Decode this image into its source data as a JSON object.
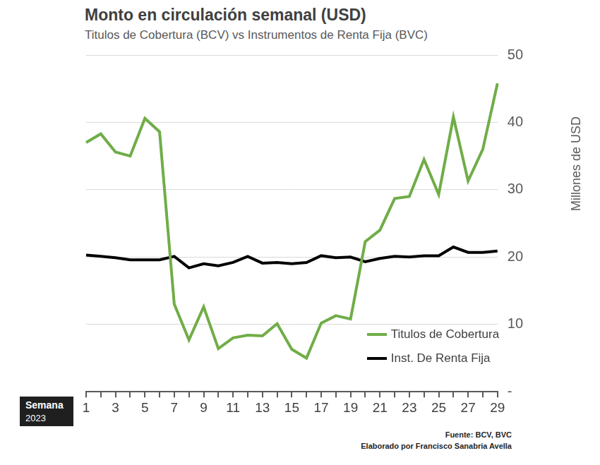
{
  "chart_data": {
    "type": "line",
    "title": "Monto en circulación semanal (USD)",
    "subtitle": "Titulos de Cobertura (BCV) vs Instrumentos de Renta Fija (BVC)",
    "ylabel": "Millones de USD",
    "xlabel": "Semana",
    "xlabel_sub": "2023",
    "source": "Fuente: BCV, BVC",
    "credit": "Elaborado por Francisco Sanabria Avella",
    "categories": [
      "1",
      null,
      "3",
      null,
      "5",
      null,
      "7",
      null,
      "9",
      null,
      "11",
      null,
      "13",
      null,
      "15",
      null,
      "17",
      null,
      "19",
      null,
      "21",
      null,
      "23",
      null,
      "25",
      null,
      "27",
      null,
      "29"
    ],
    "series": [
      {
        "name": "Titulos de Cobertura",
        "color": "#70ad47",
        "values": [
          37,
          38.3,
          35.6,
          35,
          40.6,
          38.6,
          13,
          7.7,
          12.6,
          6.4,
          8,
          8.4,
          8.3,
          10.1,
          6.3,
          5,
          10.2,
          11.3,
          10.8,
          22.3,
          24,
          28.7,
          29,
          34.5,
          29.3,
          40.8,
          31.3,
          36,
          45.8
        ]
      },
      {
        "name": "Inst. De Renta Fija",
        "color": "#000000",
        "values": [
          20.3,
          20.1,
          19.9,
          19.6,
          19.6,
          19.6,
          20.1,
          18.4,
          19,
          18.7,
          19.2,
          20.1,
          19.1,
          19.2,
          19,
          19.2,
          20.2,
          19.9,
          20,
          19.3,
          19.8,
          20.1,
          20,
          20.2,
          20.2,
          21.5,
          20.7,
          20.7,
          20.9
        ]
      }
    ],
    "ylim": [
      0,
      50
    ],
    "yticks": [
      {
        "value": 0,
        "label": "-"
      },
      10,
      20,
      30,
      40,
      50
    ],
    "grid": true,
    "legend": "lower right"
  }
}
